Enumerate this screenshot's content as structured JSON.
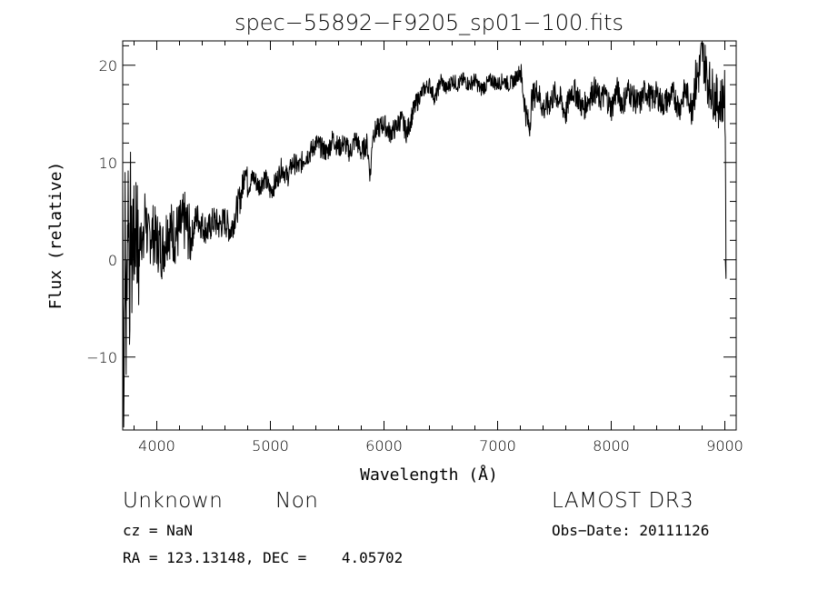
{
  "chart_data": {
    "type": "line",
    "title": "spec−55892−F9205_sp01−100.fits",
    "xlabel": "Wavelength (Å)",
    "ylabel": "Flux (relative)",
    "xlim": [
      3700,
      9100
    ],
    "ylim": [
      -17.5,
      22.5
    ],
    "xticks": [
      4000,
      5000,
      6000,
      7000,
      8000,
      9000
    ],
    "xtick_labels": [
      "4000",
      "5000",
      "6000",
      "7000",
      "8000",
      "9000"
    ],
    "yticks": [
      -10,
      0,
      10,
      20
    ],
    "ytick_labels": [
      "−10",
      "0",
      "10",
      "20"
    ],
    "series": [
      {
        "name": "flux",
        "x": [
          3700,
          3710,
          3720,
          3730,
          3740,
          3750,
          3760,
          3770,
          3780,
          3790,
          3800,
          3820,
          3840,
          3860,
          3880,
          3900,
          3920,
          3950,
          4000,
          4050,
          4100,
          4150,
          4200,
          4250,
          4300,
          4350,
          4400,
          4450,
          4500,
          4550,
          4600,
          4650,
          4700,
          4750,
          4780,
          4800,
          4850,
          4900,
          4950,
          5000,
          5050,
          5100,
          5150,
          5200,
          5250,
          5300,
          5350,
          5400,
          5450,
          5500,
          5550,
          5600,
          5650,
          5700,
          5750,
          5800,
          5850,
          5880,
          5900,
          5950,
          6000,
          6050,
          6100,
          6150,
          6200,
          6250,
          6300,
          6350,
          6400,
          6450,
          6500,
          6550,
          6600,
          6650,
          6700,
          6750,
          6800,
          6850,
          6900,
          6950,
          7000,
          7050,
          7100,
          7150,
          7200,
          7250,
          7280,
          7300,
          7350,
          7400,
          7450,
          7500,
          7550,
          7600,
          7650,
          7700,
          7750,
          7800,
          7850,
          7900,
          7950,
          8000,
          8050,
          8100,
          8150,
          8200,
          8250,
          8300,
          8350,
          8400,
          8450,
          8500,
          8550,
          8600,
          8650,
          8700,
          8750,
          8780,
          8800,
          8850,
          8900,
          8950,
          9000,
          9010
        ],
        "y": [
          8.5,
          -16.5,
          5.5,
          -9.0,
          2.5,
          8.0,
          -4.5,
          6.0,
          -2.0,
          4.0,
          1.0,
          5.0,
          -1.5,
          4.5,
          0.5,
          6.0,
          1.5,
          3.0,
          2.0,
          1.0,
          3.5,
          2.5,
          3.0,
          4.0,
          2.0,
          4.5,
          3.5,
          3.0,
          4.0,
          3.5,
          4.0,
          3.0,
          5.0,
          7.0,
          10.0,
          7.5,
          8.5,
          7.5,
          8.5,
          7.0,
          8.0,
          9.5,
          8.5,
          10.0,
          9.5,
          10.5,
          11.0,
          12.0,
          11.5,
          11.0,
          12.5,
          11.5,
          12.0,
          11.0,
          12.5,
          11.0,
          12.0,
          8.5,
          13.0,
          13.5,
          14.0,
          13.0,
          13.5,
          14.5,
          13.0,
          15.0,
          16.5,
          17.5,
          18.0,
          16.5,
          18.5,
          17.5,
          18.5,
          18.0,
          18.5,
          18.0,
          18.5,
          17.5,
          18.0,
          18.5,
          18.0,
          18.5,
          18.0,
          18.5,
          19.5,
          15.0,
          13.5,
          16.5,
          17.5,
          15.5,
          16.0,
          17.0,
          16.5,
          15.0,
          17.5,
          17.0,
          15.5,
          16.5,
          17.5,
          16.5,
          17.0,
          15.5,
          17.5,
          16.0,
          17.5,
          16.5,
          16.0,
          17.5,
          16.5,
          17.0,
          16.0,
          16.5,
          17.0,
          15.5,
          17.5,
          16.0,
          18.5,
          19.5,
          21.5,
          18.5,
          17.0,
          16.0,
          17.0,
          0.0
        ]
      }
    ]
  },
  "info": {
    "object_class": "Unknown",
    "subclass": "Non",
    "cz": "cz = NaN",
    "coords": "RA = 123.13148, DEC =    4.05702",
    "survey": "LAMOST DR3",
    "obs_date": "Obs−Date: 20111126"
  }
}
